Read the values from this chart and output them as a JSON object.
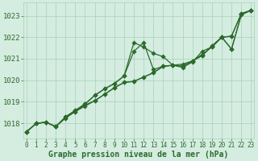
{
  "x": [
    0,
    1,
    2,
    3,
    4,
    5,
    6,
    7,
    8,
    9,
    10,
    11,
    12,
    13,
    14,
    15,
    16,
    17,
    18,
    19,
    20,
    21,
    22,
    23
  ],
  "series1": [
    1017.6,
    1018.0,
    1018.05,
    1017.85,
    1018.3,
    1018.6,
    1018.9,
    1019.3,
    1019.6,
    1019.85,
    1020.2,
    1021.75,
    1021.55,
    1021.25,
    1021.1,
    1020.7,
    1020.65,
    1020.9,
    1021.15,
    1021.6,
    1022.0,
    1022.05,
    1023.1,
    1023.25
  ],
  "series2": [
    1017.6,
    1018.0,
    1018.05,
    1017.85,
    1018.3,
    1018.6,
    1018.9,
    1019.3,
    1019.6,
    1019.85,
    1020.2,
    1021.35,
    1021.75,
    1020.5,
    1020.65,
    1020.7,
    1020.65,
    1020.9,
    1021.15,
    1021.6,
    1022.0,
    1022.05,
    1023.1,
    1023.25
  ],
  "series3": [
    1017.6,
    1018.0,
    1018.05,
    1017.85,
    1018.25,
    1018.55,
    1018.85,
    1019.05,
    1019.35,
    1019.65,
    1019.9,
    1019.95,
    1020.15,
    1020.35,
    1020.65,
    1020.7,
    1020.75,
    1020.9,
    1021.2,
    1021.55,
    1022.0,
    1021.45,
    1023.05,
    1023.25
  ],
  "series4": [
    1017.6,
    1018.0,
    1018.05,
    1017.85,
    1018.25,
    1018.55,
    1018.8,
    1019.05,
    1019.35,
    1019.65,
    1019.9,
    1019.95,
    1020.15,
    1020.35,
    1020.65,
    1020.7,
    1020.6,
    1020.85,
    1021.35,
    1021.55,
    1022.0,
    1021.45,
    1023.05,
    1023.25
  ],
  "line_color": "#2d6a2d",
  "bg_color": "#d4ede0",
  "grid_color": "#aacfba",
  "xlabel": "Graphe pression niveau de la mer (hPa)",
  "ylim": [
    1017.3,
    1023.6
  ],
  "yticks": [
    1018,
    1019,
    1020,
    1021,
    1022,
    1023
  ],
  "xticks": [
    0,
    1,
    2,
    3,
    4,
    5,
    6,
    7,
    8,
    9,
    10,
    11,
    12,
    13,
    14,
    15,
    16,
    17,
    18,
    19,
    20,
    21,
    22,
    23
  ],
  "markersize": 2.8,
  "linewidth": 0.9
}
